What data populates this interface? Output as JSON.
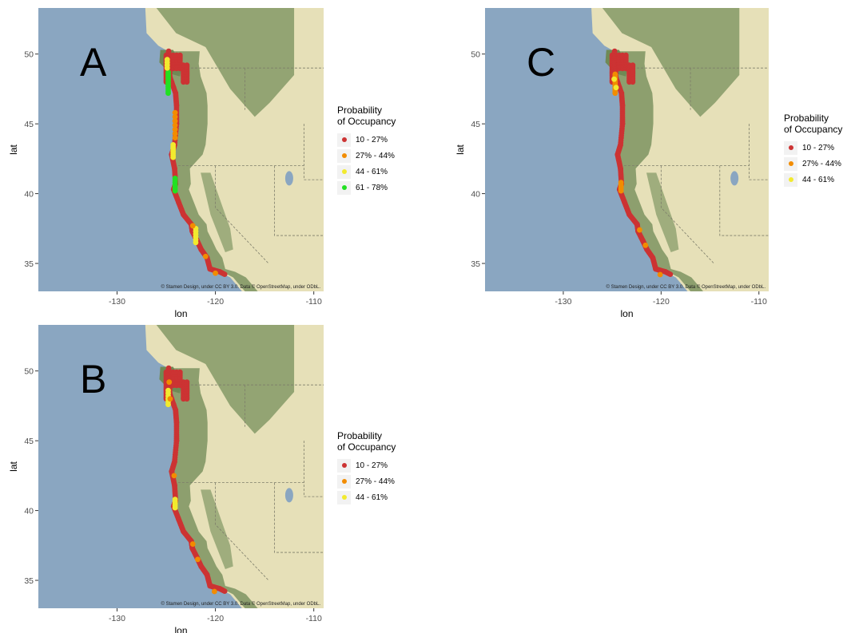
{
  "legend_title_line1": "Probability",
  "legend_title_line2": "of Occupancy",
  "x_axis_label": "lon",
  "y_axis_label": "lat",
  "x_ticks": [
    "-130",
    "-120",
    "-110"
  ],
  "y_ticks": [
    "35",
    "40",
    "45",
    "50"
  ],
  "attribution": "© Stamen Design, under CC BY 3.0. Data © OpenStreetMap, under ODbL.",
  "colors": {
    "ocean": "#8aa6c1",
    "land": "#e6e0b8",
    "forest": "#6f8a55",
    "bin_10_27": "#cc3333",
    "bin_27_44": "#f28c00",
    "bin_44_61": "#f2ea2e",
    "bin_61_78": "#22e022"
  },
  "panels": [
    {
      "id": "A",
      "label": "A",
      "legend": [
        {
          "label": "10 - 27%",
          "color": "#cc3333"
        },
        {
          "label": "27% - 44%",
          "color": "#f28c00"
        },
        {
          "label": "44 - 61%",
          "color": "#f2ea2e"
        },
        {
          "label": "61 - 78%",
          "color": "#22e022"
        }
      ]
    },
    {
      "id": "C",
      "label": "C",
      "legend": [
        {
          "label": "10 - 27%",
          "color": "#cc3333"
        },
        {
          "label": "27% - 44%",
          "color": "#f28c00"
        },
        {
          "label": "44 - 61%",
          "color": "#f2ea2e"
        }
      ]
    },
    {
      "id": "B",
      "label": "B",
      "legend": [
        {
          "label": "10 - 27%",
          "color": "#cc3333"
        },
        {
          "label": "27% - 44%",
          "color": "#f28c00"
        },
        {
          "label": "44 - 61%",
          "color": "#f2ea2e"
        }
      ]
    }
  ]
}
